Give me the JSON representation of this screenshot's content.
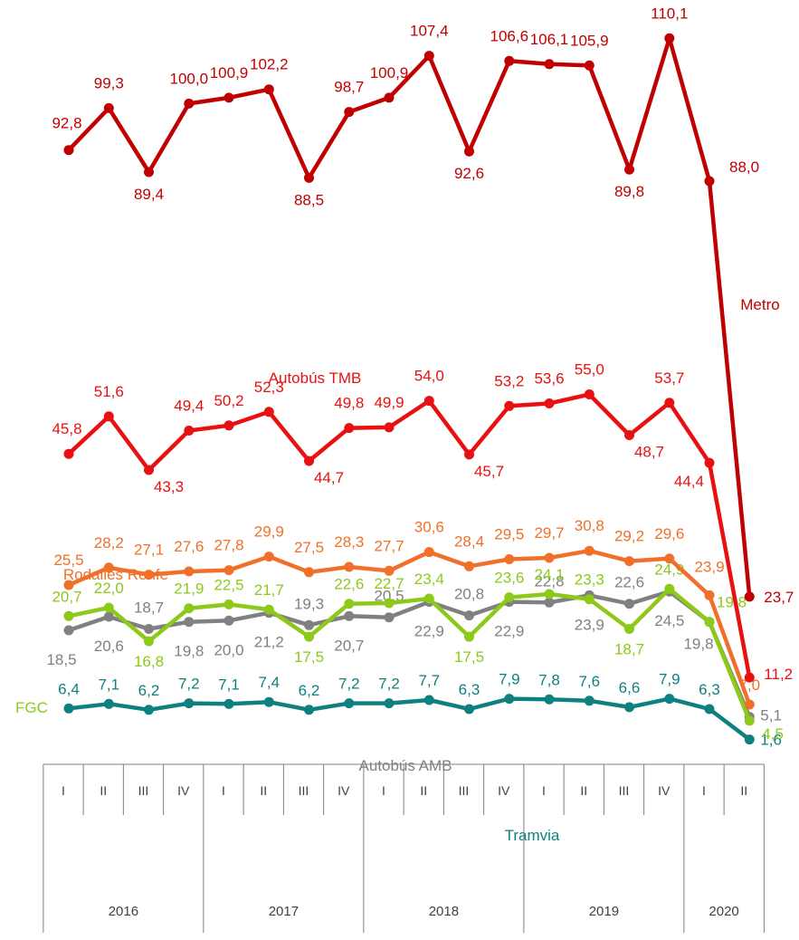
{
  "chart_data": {
    "type": "line",
    "title": "",
    "xlabel": "",
    "ylabel": "",
    "categories": [
      "I",
      "II",
      "III",
      "IV",
      "I",
      "II",
      "III",
      "IV",
      "I",
      "II",
      "III",
      "IV",
      "I",
      "II",
      "III",
      "IV",
      "I",
      "II"
    ],
    "years": [
      {
        "label": "2016",
        "quarters": 4
      },
      {
        "label": "2017",
        "quarters": 4
      },
      {
        "label": "2018",
        "quarters": 4
      },
      {
        "label": "2019",
        "quarters": 4
      },
      {
        "label": "2020",
        "quarters": 2
      }
    ],
    "ylim": [
      0,
      110
    ],
    "grid": false,
    "series": [
      {
        "name": "Metro",
        "color": "#c00000",
        "values": [
          92.8,
          99.3,
          89.4,
          100.0,
          100.9,
          102.2,
          88.5,
          98.7,
          100.9,
          107.4,
          92.6,
          106.6,
          106.1,
          105.9,
          89.8,
          110.1,
          88.0,
          23.7
        ],
        "labels": [
          "92,8",
          "99,3",
          "89,4",
          "100,0",
          "100,9",
          "102,2",
          "88,5",
          "98,7",
          "100,9",
          "107,4",
          "92,6",
          "106,6",
          "106,1",
          "105,9",
          "89,8",
          "110,1",
          "88,0",
          "23,7"
        ]
      },
      {
        "name": "Autobús  TMB",
        "color": "#e81010",
        "values": [
          45.8,
          51.6,
          43.3,
          49.4,
          50.2,
          52.3,
          44.7,
          49.8,
          49.9,
          54.0,
          45.7,
          53.2,
          53.6,
          55.0,
          48.7,
          53.7,
          44.4,
          11.2
        ],
        "labels": [
          "45,8",
          "51,6",
          "43,3",
          "49,4",
          "50,2",
          "52,3",
          "44,7",
          "49,8",
          "49,9",
          "54,0",
          "45,7",
          "53,2",
          "53,6",
          "55,0",
          "48,7",
          "53,7",
          "44,4",
          "11,2"
        ]
      },
      {
        "name": "Rodalies Renfe",
        "color": "#f0702a",
        "values": [
          25.5,
          28.2,
          27.1,
          27.6,
          27.8,
          29.9,
          27.5,
          28.3,
          27.7,
          30.6,
          28.4,
          29.5,
          29.7,
          30.8,
          29.2,
          29.6,
          23.9,
          7.0
        ],
        "labels": [
          "25,5",
          "28,2",
          "27,1",
          "27,6",
          "27,8",
          "29,9",
          "27,5",
          "28,3",
          "27,7",
          "30,6",
          "28,4",
          "29,5",
          "29,7",
          "30,8",
          "29,2",
          "29,6",
          "23,9",
          "7,0"
        ]
      },
      {
        "name": "FGC",
        "color": "#8cc919",
        "values": [
          20.7,
          22.0,
          16.8,
          21.9,
          22.5,
          21.7,
          17.5,
          22.6,
          22.7,
          23.4,
          17.5,
          23.6,
          24.1,
          23.3,
          18.7,
          24.9,
          19.8,
          4.5
        ],
        "labels": [
          "20,7",
          "22,0",
          "16,8",
          "21,9",
          "22,5",
          "21,7",
          "17,5",
          "22,6",
          "22,7",
          "23,4",
          "17,5",
          "23,6",
          "24,1",
          "23,3",
          "18,7",
          "24,9",
          "19,8",
          "4,5"
        ]
      },
      {
        "name": "Autobús AMB",
        "color": "#808080",
        "values": [
          18.5,
          20.6,
          18.7,
          19.8,
          20.0,
          21.2,
          19.3,
          20.7,
          20.5,
          22.9,
          20.8,
          22.9,
          22.8,
          23.9,
          22.6,
          24.5,
          19.8,
          5.1
        ],
        "labels": [
          "18,5",
          "20,6",
          "18,7",
          "19,8",
          "20,0",
          "21,2",
          "19,3",
          "20,7",
          "20,5",
          "22,9",
          "20,8",
          "22,9",
          "22,8",
          "23,9",
          "22,6",
          "24,5",
          "19,8",
          "5,1"
        ]
      },
      {
        "name": "Tramvia",
        "color": "#0f8080",
        "values": [
          6.4,
          7.1,
          6.2,
          7.2,
          7.1,
          7.4,
          6.2,
          7.2,
          7.2,
          7.7,
          6.3,
          7.9,
          7.8,
          7.6,
          6.6,
          7.9,
          6.3,
          1.6
        ],
        "labels": [
          "6,4",
          "7,1",
          "6,2",
          "7,2",
          "7,1",
          "7,4",
          "6,2",
          "7,2",
          "7,2",
          "7,7",
          "6,3",
          "7,9",
          "7,8",
          "7,6",
          "6,6",
          "7,9",
          "6,3",
          "1,6"
        ]
      }
    ]
  }
}
